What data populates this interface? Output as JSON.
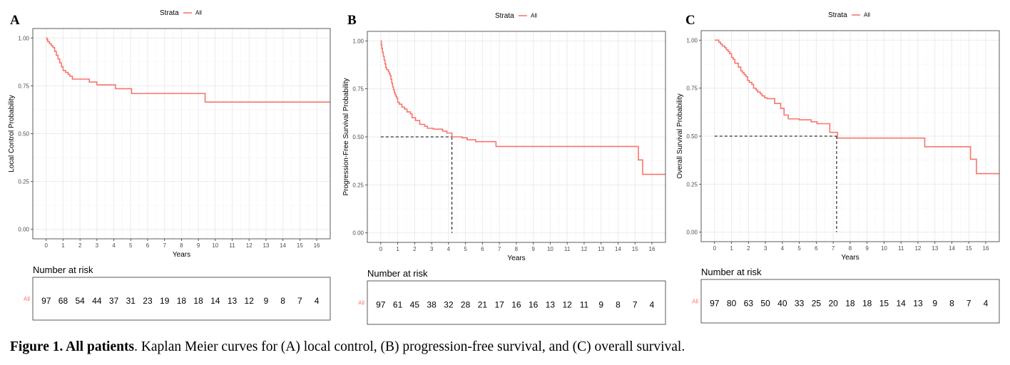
{
  "colors": {
    "curve": "#F8766D",
    "grid": "#ebebeb",
    "panel_border": "#333333",
    "median_line": "#000000"
  },
  "legend": {
    "title": "Strata",
    "label": "All"
  },
  "risk_table": {
    "title": "Number at risk",
    "strata_label": "All"
  },
  "caption": {
    "bold": "Figure 1. All patients",
    "text": ". Kaplan Meier curves for (A) local control, (B) progression-free survival, and (C) overall survival."
  },
  "chart_data": [
    {
      "type": "line",
      "panel": "A",
      "xlabel": "Years",
      "ylabel": "Local Control Probability",
      "xlim": [
        0,
        16.8
      ],
      "ylim": [
        0,
        1
      ],
      "x_ticks": [
        "0",
        "1",
        "2",
        "3",
        "4",
        "5",
        "6",
        "7",
        "8",
        "9",
        "10",
        "11",
        "12",
        "13",
        "14",
        "15",
        "16"
      ],
      "y_ticks": [
        "0.00",
        "0.25",
        "0.50",
        "0.75",
        "1.00"
      ],
      "step": true,
      "series": [
        {
          "name": "All",
          "x": [
            0,
            0.05,
            0.1,
            0.2,
            0.3,
            0.4,
            0.5,
            0.6,
            0.7,
            0.8,
            0.9,
            1.0,
            1.15,
            1.3,
            1.4,
            1.55,
            2.2,
            2.55,
            3.0,
            3.55,
            4.1,
            4.65,
            5.05,
            8.8,
            9.4,
            16.8
          ],
          "y": [
            1.0,
            0.99,
            0.98,
            0.97,
            0.96,
            0.95,
            0.93,
            0.91,
            0.89,
            0.87,
            0.85,
            0.83,
            0.82,
            0.81,
            0.8,
            0.785,
            0.785,
            0.77,
            0.755,
            0.755,
            0.735,
            0.735,
            0.71,
            0.71,
            0.665,
            0.665
          ]
        }
      ],
      "risk": [
        "97",
        "68",
        "54",
        "44",
        "37",
        "31",
        "23",
        "19",
        "18",
        "18",
        "14",
        "13",
        "12",
        "9",
        "8",
        "7",
        "4"
      ]
    },
    {
      "type": "line",
      "panel": "B",
      "xlabel": "Years",
      "ylabel": "Progression-Free Survival Probability",
      "xlim": [
        0,
        16.8
      ],
      "ylim": [
        0,
        1
      ],
      "x_ticks": [
        "0",
        "1",
        "2",
        "3",
        "4",
        "5",
        "6",
        "7",
        "8",
        "9",
        "10",
        "11",
        "12",
        "13",
        "14",
        "15",
        "16"
      ],
      "y_ticks": [
        "0.00",
        "0.25",
        "0.50",
        "0.75",
        "1.00"
      ],
      "step": true,
      "median": 4.2,
      "series": [
        {
          "name": "All",
          "x": [
            0,
            0.03,
            0.06,
            0.1,
            0.15,
            0.2,
            0.25,
            0.3,
            0.35,
            0.45,
            0.5,
            0.55,
            0.6,
            0.65,
            0.7,
            0.75,
            0.8,
            0.85,
            0.9,
            0.95,
            1.0,
            1.1,
            1.25,
            1.4,
            1.55,
            1.75,
            1.85,
            2.05,
            2.3,
            2.6,
            2.75,
            3.1,
            3.5,
            3.65,
            3.9,
            4.2,
            4.8,
            5.1,
            5.6,
            6.8,
            14.6,
            15.2,
            15.45,
            16.8
          ],
          "y": [
            1.0,
            0.98,
            0.96,
            0.94,
            0.92,
            0.9,
            0.88,
            0.86,
            0.85,
            0.84,
            0.83,
            0.82,
            0.8,
            0.78,
            0.76,
            0.745,
            0.73,
            0.72,
            0.71,
            0.7,
            0.68,
            0.67,
            0.655,
            0.645,
            0.63,
            0.62,
            0.6,
            0.585,
            0.565,
            0.555,
            0.545,
            0.54,
            0.54,
            0.53,
            0.52,
            0.5,
            0.495,
            0.485,
            0.475,
            0.45,
            0.45,
            0.38,
            0.305,
            0.305
          ]
        }
      ],
      "risk": [
        "97",
        "61",
        "45",
        "38",
        "32",
        "28",
        "21",
        "17",
        "16",
        "16",
        "13",
        "12",
        "11",
        "9",
        "8",
        "7",
        "4"
      ]
    },
    {
      "type": "line",
      "panel": "C",
      "xlabel": "Years",
      "ylabel": "Overall Survival Probability",
      "xlim": [
        0,
        16.8
      ],
      "ylim": [
        0,
        1
      ],
      "x_ticks": [
        "0",
        "1",
        "2",
        "3",
        "4",
        "5",
        "6",
        "7",
        "8",
        "9",
        "10",
        "11",
        "12",
        "13",
        "14",
        "15",
        "16"
      ],
      "y_ticks": [
        "0.00",
        "0.25",
        "0.50",
        "0.75",
        "1.00"
      ],
      "step": true,
      "median": 7.2,
      "series": [
        {
          "name": "All",
          "x": [
            0,
            0.25,
            0.35,
            0.45,
            0.6,
            0.7,
            0.8,
            0.9,
            1.0,
            1.1,
            1.2,
            1.4,
            1.55,
            1.65,
            1.75,
            1.85,
            1.95,
            2.05,
            2.2,
            2.3,
            2.45,
            2.55,
            2.7,
            2.8,
            2.95,
            3.1,
            3.55,
            3.9,
            4.1,
            4.35,
            5.0,
            5.7,
            6.05,
            6.8,
            7.25,
            12.4,
            15.1,
            15.45,
            16.8
          ],
          "y": [
            1.0,
            0.99,
            0.98,
            0.97,
            0.96,
            0.95,
            0.94,
            0.93,
            0.91,
            0.9,
            0.88,
            0.86,
            0.84,
            0.83,
            0.82,
            0.81,
            0.79,
            0.78,
            0.77,
            0.75,
            0.74,
            0.73,
            0.72,
            0.71,
            0.7,
            0.695,
            0.67,
            0.645,
            0.61,
            0.59,
            0.585,
            0.575,
            0.565,
            0.52,
            0.49,
            0.445,
            0.38,
            0.305,
            0.305
          ]
        }
      ],
      "risk": [
        "97",
        "80",
        "63",
        "50",
        "40",
        "33",
        "25",
        "20",
        "18",
        "18",
        "15",
        "14",
        "13",
        "9",
        "8",
        "7",
        "4"
      ]
    }
  ]
}
